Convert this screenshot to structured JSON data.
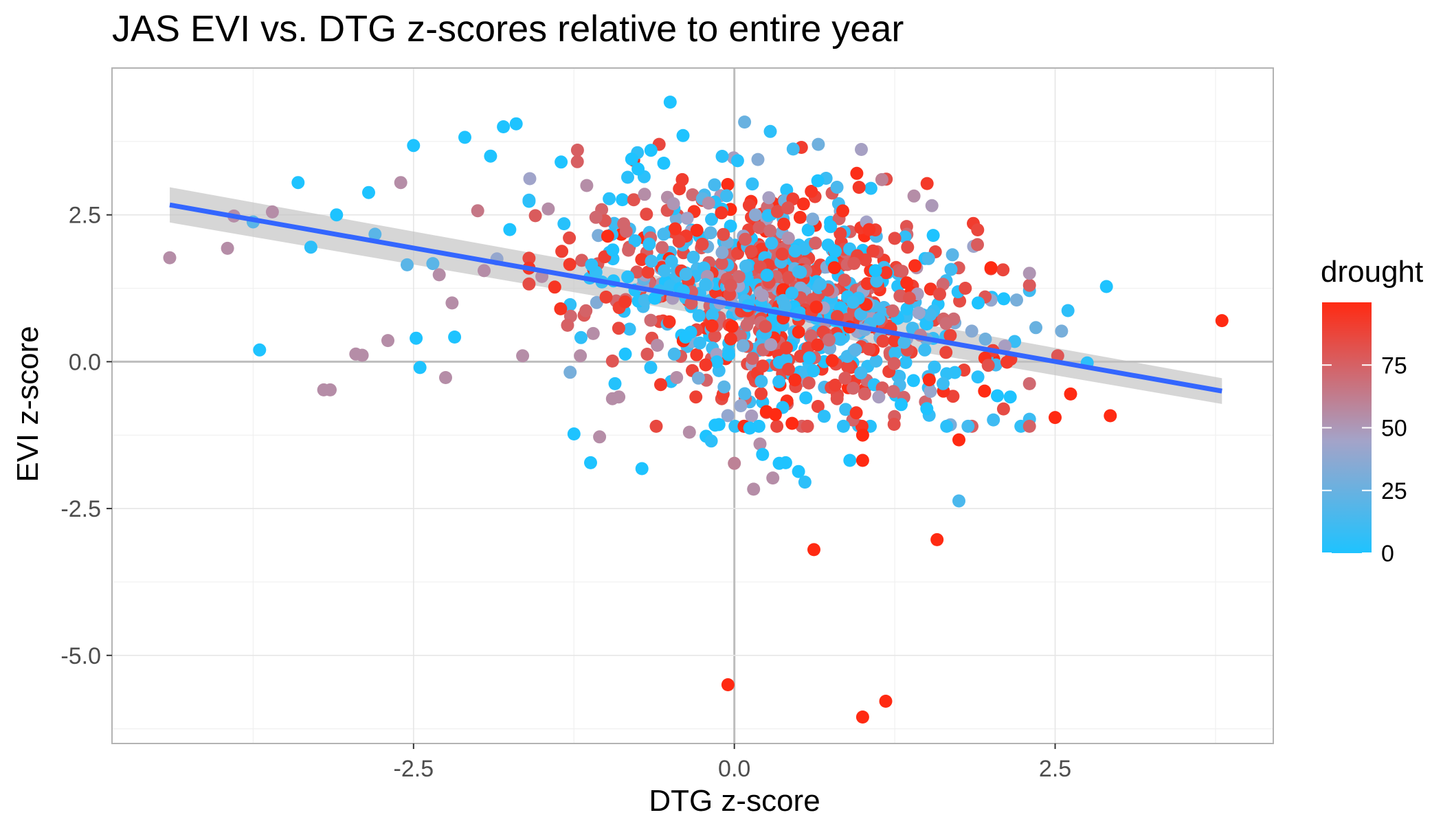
{
  "chart_data": {
    "type": "scatter",
    "title": "JAS EVI vs. DTG z-scores relative to entire year",
    "xlabel": "DTG z-score",
    "ylabel": "EVI z-score",
    "xlim": [
      -4.85,
      4.2
    ],
    "ylim": [
      -6.5,
      5.0
    ],
    "x_ticks": [
      -2.5,
      0.0,
      2.5
    ],
    "x_tick_labels": [
      "-2.5",
      "0.0",
      "2.5"
    ],
    "y_ticks": [
      -5.0,
      -2.5,
      0.0,
      2.5
    ],
    "y_tick_labels": [
      "-5.0",
      "-2.5",
      "0.0",
      "2.5"
    ],
    "grid": true,
    "background": "white",
    "legend": {
      "title": "drought",
      "placement": "right",
      "type": "colorbar",
      "range": [
        0,
        100
      ],
      "ticks": [
        0,
        25,
        50,
        75
      ],
      "tick_labels": [
        "0",
        "25",
        "50",
        "75"
      ],
      "low_color": "#1ec3ff",
      "mid_color": "#a4a3c8",
      "high_color": "#ff2a12"
    },
    "trend_line": {
      "method": "linear",
      "color": "#3366ff",
      "band_color": "#c0c0c0",
      "start": {
        "x": -4.4,
        "y": 2.67
      },
      "end": {
        "x": 3.8,
        "y": -0.5
      },
      "start_band": 0.3,
      "end_band": 0.22
    },
    "highlighted_points": [
      {
        "x": -4.4,
        "y": 1.77,
        "drought": 55
      },
      {
        "x": -3.95,
        "y": 1.93,
        "drought": 55
      },
      {
        "x": -3.9,
        "y": 2.48,
        "drought": 55
      },
      {
        "x": -3.75,
        "y": 2.38,
        "drought": 20
      },
      {
        "x": -3.7,
        "y": 0.2,
        "drought": 0
      },
      {
        "x": -3.6,
        "y": 2.55,
        "drought": 55
      },
      {
        "x": -3.4,
        "y": 3.05,
        "drought": 0
      },
      {
        "x": -3.3,
        "y": 1.95,
        "drought": 5
      },
      {
        "x": -3.2,
        "y": -0.48,
        "drought": 55
      },
      {
        "x": -3.15,
        "y": -0.48,
        "drought": 55
      },
      {
        "x": -3.1,
        "y": 2.5,
        "drought": 0
      },
      {
        "x": -2.95,
        "y": 0.13,
        "drought": 55
      },
      {
        "x": -2.9,
        "y": 0.11,
        "drought": 55
      },
      {
        "x": -2.85,
        "y": 2.88,
        "drought": 0
      },
      {
        "x": -2.8,
        "y": 2.17,
        "drought": 20
      },
      {
        "x": -2.7,
        "y": 0.36,
        "drought": 55
      },
      {
        "x": -2.6,
        "y": 3.05,
        "drought": 55
      },
      {
        "x": -2.55,
        "y": 1.65,
        "drought": 20
      },
      {
        "x": -2.5,
        "y": 3.68,
        "drought": 0
      },
      {
        "x": -2.48,
        "y": 0.4,
        "drought": 0
      },
      {
        "x": -2.45,
        "y": -0.1,
        "drought": 0
      },
      {
        "x": -2.35,
        "y": 1.67,
        "drought": 20
      },
      {
        "x": -2.3,
        "y": 1.48,
        "drought": 55
      },
      {
        "x": -2.25,
        "y": -0.27,
        "drought": 55
      },
      {
        "x": -2.2,
        "y": 1.0,
        "drought": 55
      },
      {
        "x": -2.18,
        "y": 0.42,
        "drought": 0
      },
      {
        "x": -2.1,
        "y": 3.82,
        "drought": 0
      },
      {
        "x": -2.0,
        "y": 2.57,
        "drought": 65
      },
      {
        "x": -1.95,
        "y": 1.55,
        "drought": 55
      },
      {
        "x": -1.9,
        "y": 3.5,
        "drought": 0
      },
      {
        "x": -1.85,
        "y": 1.75,
        "drought": 40
      },
      {
        "x": -1.8,
        "y": 4.0,
        "drought": 0
      },
      {
        "x": -1.75,
        "y": 2.25,
        "drought": 0
      },
      {
        "x": -1.7,
        "y": 4.05,
        "drought": 0
      },
      {
        "x": -1.65,
        "y": 0.1,
        "drought": 55
      },
      {
        "x": -1.6,
        "y": 2.75,
        "drought": 5
      },
      {
        "x": -1.5,
        "y": 1.45,
        "drought": 55
      },
      {
        "x": -1.45,
        "y": 2.6,
        "drought": 55
      },
      {
        "x": -1.4,
        "y": 1.27,
        "drought": 95
      },
      {
        "x": -1.35,
        "y": 3.4,
        "drought": 0
      },
      {
        "x": -1.3,
        "y": 0.62,
        "drought": 75
      },
      {
        "x": -1.28,
        "y": -0.18,
        "drought": 30
      },
      {
        "x": -1.25,
        "y": -1.23,
        "drought": 0
      },
      {
        "x": -1.2,
        "y": 0.1,
        "drought": 55
      },
      {
        "x": -1.15,
        "y": 3.0,
        "drought": 55
      },
      {
        "x": -1.12,
        "y": -1.72,
        "drought": 0
      },
      {
        "x": -1.1,
        "y": 0.48,
        "drought": 55
      },
      {
        "x": -1.05,
        "y": -1.28,
        "drought": 55
      },
      {
        "x": -1.0,
        "y": 1.1,
        "drought": 90
      },
      {
        "x": -0.95,
        "y": -0.63,
        "drought": 55
      },
      {
        "x": -0.9,
        "y": -0.6,
        "drought": 55
      },
      {
        "x": -0.85,
        "y": 0.13,
        "drought": 0
      },
      {
        "x": -0.8,
        "y": 3.45,
        "drought": 0
      },
      {
        "x": -0.75,
        "y": 3.28,
        "drought": 0
      },
      {
        "x": -0.72,
        "y": -1.82,
        "drought": 0
      },
      {
        "x": -0.7,
        "y": 2.85,
        "drought": 55
      },
      {
        "x": -0.65,
        "y": 3.6,
        "drought": 0
      },
      {
        "x": -0.62,
        "y": 1.08,
        "drought": 0
      },
      {
        "x": -0.6,
        "y": 0.28,
        "drought": 55
      },
      {
        "x": -0.55,
        "y": 3.38,
        "drought": 0
      },
      {
        "x": -0.5,
        "y": 4.42,
        "drought": 0
      },
      {
        "x": -0.45,
        "y": -0.27,
        "drought": 55
      },
      {
        "x": -0.4,
        "y": 3.85,
        "drought": 0
      },
      {
        "x": -0.38,
        "y": 0.42,
        "drought": 0
      },
      {
        "x": -0.35,
        "y": -1.2,
        "drought": 55
      },
      {
        "x": -0.3,
        "y": -0.6,
        "drought": 90
      },
      {
        "x": -0.28,
        "y": -0.28,
        "drought": 30
      },
      {
        "x": -0.25,
        "y": 2.0,
        "drought": 85
      },
      {
        "x": -0.22,
        "y": -1.27,
        "drought": 0
      },
      {
        "x": -0.2,
        "y": 2.7,
        "drought": 55
      },
      {
        "x": -0.18,
        "y": -1.35,
        "drought": 5
      },
      {
        "x": -0.15,
        "y": -1.08,
        "drought": 0
      },
      {
        "x": -0.12,
        "y": -1.07,
        "drought": 0
      },
      {
        "x": -0.08,
        "y": -0.43,
        "drought": 20
      },
      {
        "x": -0.05,
        "y": -5.5,
        "drought": 100
      },
      {
        "x": 0.0,
        "y": -1.73,
        "drought": 60
      },
      {
        "x": 0.05,
        "y": -0.75,
        "drought": 40
      },
      {
        "x": 0.08,
        "y": 4.08,
        "drought": 25
      },
      {
        "x": 0.12,
        "y": -1.13,
        "drought": 0
      },
      {
        "x": 0.15,
        "y": -2.17,
        "drought": 55
      },
      {
        "x": 0.2,
        "y": -1.4,
        "drought": 55
      },
      {
        "x": 0.22,
        "y": -1.58,
        "drought": 0
      },
      {
        "x": 0.25,
        "y": -0.85,
        "drought": 100
      },
      {
        "x": 0.28,
        "y": 3.92,
        "drought": 5
      },
      {
        "x": 0.3,
        "y": -1.98,
        "drought": 55
      },
      {
        "x": 0.32,
        "y": -0.9,
        "drought": 100
      },
      {
        "x": 0.35,
        "y": -1.73,
        "drought": 0
      },
      {
        "x": 0.4,
        "y": -1.72,
        "drought": 0
      },
      {
        "x": 0.45,
        "y": -1.05,
        "drought": 100
      },
      {
        "x": 0.5,
        "y": -1.87,
        "drought": 0
      },
      {
        "x": 0.55,
        "y": -2.05,
        "drought": 5
      },
      {
        "x": 0.6,
        "y": 2.9,
        "drought": 95
      },
      {
        "x": 0.62,
        "y": -3.2,
        "drought": 100
      },
      {
        "x": 0.65,
        "y": 3.08,
        "drought": 0
      },
      {
        "x": 0.7,
        "y": -0.93,
        "drought": 5
      },
      {
        "x": 0.75,
        "y": 2.3,
        "drought": 0
      },
      {
        "x": 0.78,
        "y": 1.6,
        "drought": 100
      },
      {
        "x": 0.8,
        "y": 2.97,
        "drought": 15
      },
      {
        "x": 0.85,
        "y": -1.1,
        "drought": 5
      },
      {
        "x": 0.9,
        "y": -1.68,
        "drought": 0
      },
      {
        "x": 0.95,
        "y": -0.87,
        "drought": 95
      },
      {
        "x": 1.0,
        "y": -1.68,
        "drought": 100
      },
      {
        "x": 1.0,
        "y": -1.25,
        "drought": 100
      },
      {
        "x": 1.0,
        "y": -6.05,
        "drought": 100
      },
      {
        "x": 1.05,
        "y": 2.25,
        "drought": 95
      },
      {
        "x": 1.1,
        "y": 1.55,
        "drought": 0
      },
      {
        "x": 1.15,
        "y": 3.1,
        "drought": 60
      },
      {
        "x": 1.18,
        "y": -5.78,
        "drought": 100
      },
      {
        "x": 1.25,
        "y": 2.1,
        "drought": 85
      },
      {
        "x": 1.3,
        "y": -0.73,
        "drought": 0
      },
      {
        "x": 1.35,
        "y": 1.95,
        "drought": 85
      },
      {
        "x": 1.4,
        "y": 2.82,
        "drought": 55
      },
      {
        "x": 1.45,
        "y": 0.45,
        "drought": 60
      },
      {
        "x": 1.5,
        "y": -0.8,
        "drought": 0
      },
      {
        "x": 1.55,
        "y": 2.15,
        "drought": 0
      },
      {
        "x": 1.58,
        "y": -3.03,
        "drought": 100
      },
      {
        "x": 1.6,
        "y": 1.15,
        "drought": 85
      },
      {
        "x": 1.65,
        "y": 0.65,
        "drought": 70
      },
      {
        "x": 1.7,
        "y": 1.82,
        "drought": 20
      },
      {
        "x": 1.75,
        "y": -1.33,
        "drought": 100
      },
      {
        "x": 1.75,
        "y": -2.37,
        "drought": 15
      },
      {
        "x": 1.8,
        "y": 1.25,
        "drought": 85
      },
      {
        "x": 1.85,
        "y": 0.52,
        "drought": 35
      },
      {
        "x": 1.9,
        "y": 1.0,
        "drought": 0
      },
      {
        "x": 1.95,
        "y": -0.5,
        "drought": 100
      },
      {
        "x": 2.0,
        "y": 1.6,
        "drought": 100
      },
      {
        "x": 2.05,
        "y": -0.58,
        "drought": 0
      },
      {
        "x": 2.1,
        "y": 1.07,
        "drought": 0
      },
      {
        "x": 2.15,
        "y": -0.6,
        "drought": 0
      },
      {
        "x": 2.2,
        "y": 1.05,
        "drought": 30
      },
      {
        "x": 2.35,
        "y": 0.58,
        "drought": 25
      },
      {
        "x": 2.5,
        "y": -0.95,
        "drought": 100
      },
      {
        "x": 2.52,
        "y": 0.1,
        "drought": 80
      },
      {
        "x": 2.55,
        "y": 0.52,
        "drought": 30
      },
      {
        "x": 2.6,
        "y": 0.87,
        "drought": 5
      },
      {
        "x": 2.62,
        "y": -0.55,
        "drought": 100
      },
      {
        "x": 2.75,
        "y": -0.02,
        "drought": 5
      },
      {
        "x": 2.93,
        "y": -0.92,
        "drought": 100
      },
      {
        "x": 2.9,
        "y": 1.28,
        "drought": 0
      },
      {
        "x": 3.8,
        "y": 0.7,
        "drought": 100
      }
    ],
    "cluster": {
      "note_for_renderer": "dense cloud of additional points concentrated around x in [-1.5, 2.2] and y in [-1.0, 3.5]",
      "count": 900,
      "seed": 20240521,
      "x_mean": 0.35,
      "x_sd": 0.75,
      "y_mean": 1.1,
      "y_sd": 0.95,
      "slope": -0.35
    }
  }
}
